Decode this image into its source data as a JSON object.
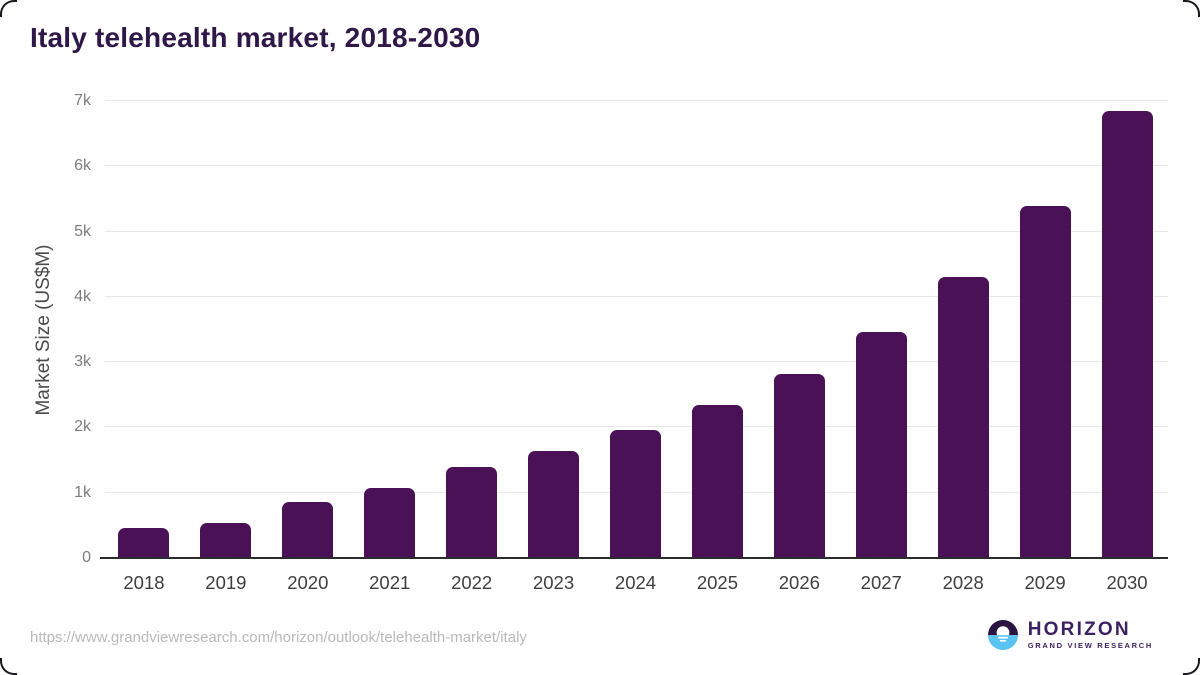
{
  "page": {
    "background": "#ffffff",
    "border_color": "#17171d"
  },
  "chart_data": {
    "type": "bar",
    "title": "Italy telehealth market, 2018-2030",
    "xlabel": "",
    "ylabel": "Market Size (US$M)",
    "categories": [
      "2018",
      "2019",
      "2020",
      "2021",
      "2022",
      "2023",
      "2024",
      "2025",
      "2026",
      "2027",
      "2028",
      "2029",
      "2030"
    ],
    "values": [
      465,
      530,
      860,
      1075,
      1400,
      1640,
      1955,
      2340,
      2825,
      3460,
      4300,
      5390,
      6845
    ],
    "ylim": [
      0,
      7000
    ],
    "yticks": [
      {
        "value": 0,
        "label": "0"
      },
      {
        "value": 1000,
        "label": "1k"
      },
      {
        "value": 2000,
        "label": "2k"
      },
      {
        "value": 3000,
        "label": "3k"
      },
      {
        "value": 4000,
        "label": "4k"
      },
      {
        "value": 5000,
        "label": "5k"
      },
      {
        "value": 6000,
        "label": "6k"
      },
      {
        "value": 7000,
        "label": "7k"
      }
    ],
    "grid": "horizontal",
    "legend_position": "none",
    "bar_color": "#4a1157",
    "title_color": "#2f1747",
    "gridline_color": "#e8e8ea",
    "axis_line_color": "#2b2b2e"
  },
  "footer": {
    "source_url": "https://www.grandviewresearch.com/horizon/outlook/telehealth-market/italy",
    "logo": {
      "wordmark": "HORIZON",
      "subtitle": "GRAND VIEW RESEARCH",
      "circle_top_color": "#2b1441",
      "circle_bottom_color": "#59c3f2",
      "reflection_color": "#ffffff",
      "text_color": "#3b2160"
    }
  }
}
